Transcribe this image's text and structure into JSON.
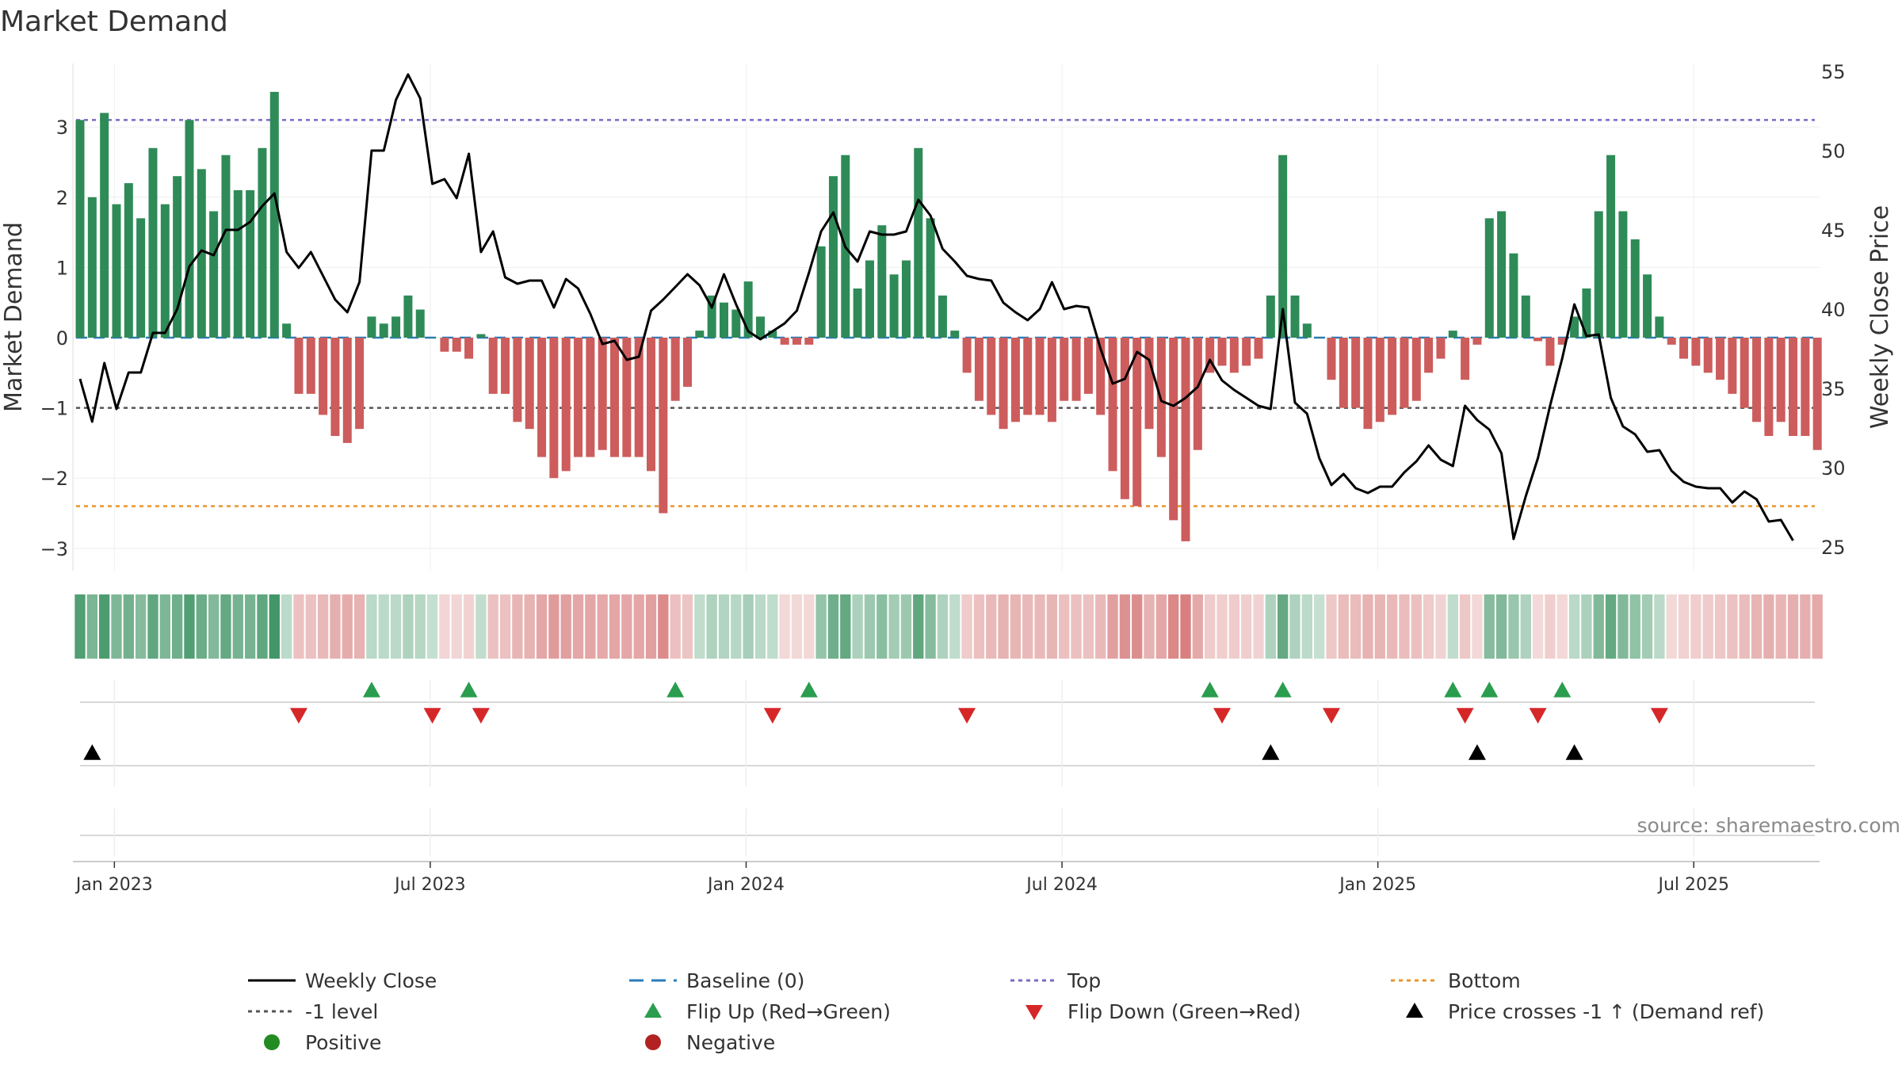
{
  "chart_data": {
    "type": "bar",
    "title": "Market Demand",
    "ylabel": "Market Demand",
    "y2label": "Weekly Close Price",
    "ylim": [
      -3.3,
      3.9
    ],
    "y2lim": [
      24.5,
      55.5
    ],
    "yticks": [
      "3",
      "2",
      "1",
      "0",
      "−1",
      "−2",
      "−3"
    ],
    "y2ticks": [
      "55",
      "50",
      "45",
      "40",
      "35",
      "30",
      "25"
    ],
    "xticks": [
      "Jan 2023",
      "Jul 2023",
      "Jan 2024",
      "Jul 2024",
      "Jan 2025",
      "Jul 2025"
    ],
    "xtick_index": [
      1,
      27,
      53,
      79,
      105,
      131
    ],
    "reference_lines": {
      "top": 3.1,
      "bottom": -2.4,
      "minus_one": -1.0,
      "baseline": 0.0
    },
    "grid": true,
    "source": "source: sharemaestro.com",
    "series": [
      {
        "name": "Market Demand",
        "type": "bar",
        "values": [
          3.1,
          2.0,
          3.2,
          1.9,
          2.2,
          1.7,
          2.7,
          1.9,
          2.3,
          3.1,
          2.4,
          1.8,
          2.6,
          2.1,
          2.1,
          2.7,
          3.5,
          0.2,
          -0.8,
          -0.8,
          -1.1,
          -1.4,
          -1.5,
          -1.3,
          0.3,
          0.2,
          0.3,
          0.6,
          0.4,
          0.0,
          -0.2,
          -0.2,
          -0.3,
          0.05,
          -0.8,
          -0.8,
          -1.2,
          -1.3,
          -1.7,
          -2.0,
          -1.9,
          -1.7,
          -1.7,
          -1.6,
          -1.7,
          -1.7,
          -1.7,
          -1.9,
          -2.5,
          -0.9,
          -0.7,
          0.1,
          0.6,
          0.5,
          0.4,
          0.8,
          0.3,
          0.1,
          -0.1,
          -0.1,
          -0.1,
          1.3,
          2.3,
          2.6,
          0.7,
          1.1,
          1.6,
          0.9,
          1.1,
          2.7,
          1.7,
          0.6,
          0.1,
          -0.5,
          -0.9,
          -1.1,
          -1.3,
          -1.2,
          -1.1,
          -1.1,
          -1.2,
          -0.9,
          -0.9,
          -0.8,
          -1.1,
          -1.9,
          -2.3,
          -2.4,
          -1.3,
          -1.7,
          -2.6,
          -2.9,
          -1.6,
          -0.5,
          -0.4,
          -0.5,
          -0.4,
          -0.3,
          0.6,
          2.6,
          0.6,
          0.2,
          0.0,
          -0.6,
          -1.0,
          -1.0,
          -1.3,
          -1.2,
          -1.1,
          -1.0,
          -0.9,
          -0.5,
          -0.3,
          0.1,
          -0.6,
          -0.1,
          1.7,
          1.8,
          1.2,
          0.6,
          -0.05,
          -0.4,
          -0.1,
          0.3,
          0.7,
          1.8,
          2.6,
          1.8,
          1.4,
          0.9,
          0.3,
          -0.1,
          -0.3,
          -0.4,
          -0.5,
          -0.6,
          -0.8,
          -1.0,
          -1.2,
          -1.4,
          -1.2,
          -1.4,
          -1.4,
          -1.6
        ]
      },
      {
        "name": "Weekly Close",
        "type": "line",
        "axis": "right",
        "values": [
          35.6,
          32.9,
          36.6,
          33.7,
          36.0,
          36.0,
          38.5,
          38.5,
          40.0,
          42.7,
          43.7,
          43.4,
          45.0,
          45.0,
          45.5,
          46.5,
          47.3,
          43.6,
          42.6,
          43.6,
          42.1,
          40.6,
          39.8,
          41.7,
          50.0,
          50.0,
          53.2,
          54.8,
          53.3,
          47.9,
          48.2,
          47.0,
          49.8,
          43.6,
          44.9,
          42.0,
          41.6,
          41.8,
          41.8,
          40.1,
          41.9,
          41.3,
          39.7,
          37.8,
          38.0,
          36.8,
          37.0,
          39.9,
          40.6,
          41.4,
          42.2,
          41.5,
          40.1,
          42.2,
          40.3,
          38.6,
          38.1,
          38.6,
          39.1,
          39.9,
          42.3,
          44.9,
          46.1,
          43.9,
          43.0,
          44.9,
          44.7,
          44.7,
          44.9,
          46.9,
          45.9,
          43.8,
          43.0,
          42.1,
          41.9,
          41.8,
          40.4,
          39.8,
          39.3,
          40.0,
          41.7,
          40.0,
          40.2,
          40.1,
          37.5,
          35.3,
          35.6,
          37.3,
          36.8,
          34.2,
          33.9,
          34.4,
          35.1,
          36.8,
          35.5,
          34.9,
          34.4,
          33.9,
          33.7,
          40.0,
          34.1,
          33.4,
          30.6,
          28.9,
          29.6,
          28.7,
          28.4,
          28.8,
          28.8,
          29.7,
          30.4,
          31.4,
          30.5,
          30.1,
          33.9,
          33.0,
          32.4,
          30.9,
          25.5,
          28.2,
          30.6,
          33.9,
          36.9,
          40.3,
          38.3,
          38.4,
          34.4,
          32.6,
          32.1,
          31.0,
          31.1,
          29.8,
          29.1,
          28.8,
          28.7,
          28.7,
          27.8,
          28.5,
          28.0,
          26.6,
          26.7,
          25.4
        ]
      }
    ],
    "flip_up_index": [
      24,
      32,
      49,
      60,
      93,
      99,
      113,
      116,
      122
    ],
    "flip_down_index": [
      18,
      29,
      33,
      57,
      73,
      94,
      103,
      114,
      120,
      130
    ],
    "price_cross_index": [
      1,
      98,
      115,
      123
    ]
  },
  "legend": [
    {
      "label": "Weekly Close",
      "symbol": "line",
      "color": "#000000"
    },
    {
      "label": "Baseline (0)",
      "symbol": "dash",
      "color": "#2b7bba"
    },
    {
      "label": "Top",
      "symbol": "dot",
      "color": "#7b68c8"
    },
    {
      "label": "Bottom",
      "symbol": "dot",
      "color": "#e8952c"
    },
    {
      "label": "-1 level",
      "symbol": "dot",
      "color": "#555555"
    },
    {
      "label": "Flip Up (Red→Green)",
      "symbol": "triangle-up",
      "color": "#2a9d4f"
    },
    {
      "label": "Flip Down (Green→Red)",
      "symbol": "triangle-down",
      "color": "#d62728"
    },
    {
      "label": "Price crosses -1 ↑ (Demand ref)",
      "symbol": "triangle-up",
      "color": "#000000"
    },
    {
      "label": "Positive",
      "symbol": "circle",
      "color": "#228b22"
    },
    {
      "label": "Negative",
      "symbol": "circle",
      "color": "#b22222"
    }
  ],
  "colors": {
    "positive_bar": "#2e8b57",
    "negative_bar": "#cd5c5c",
    "price_line": "#000000"
  }
}
